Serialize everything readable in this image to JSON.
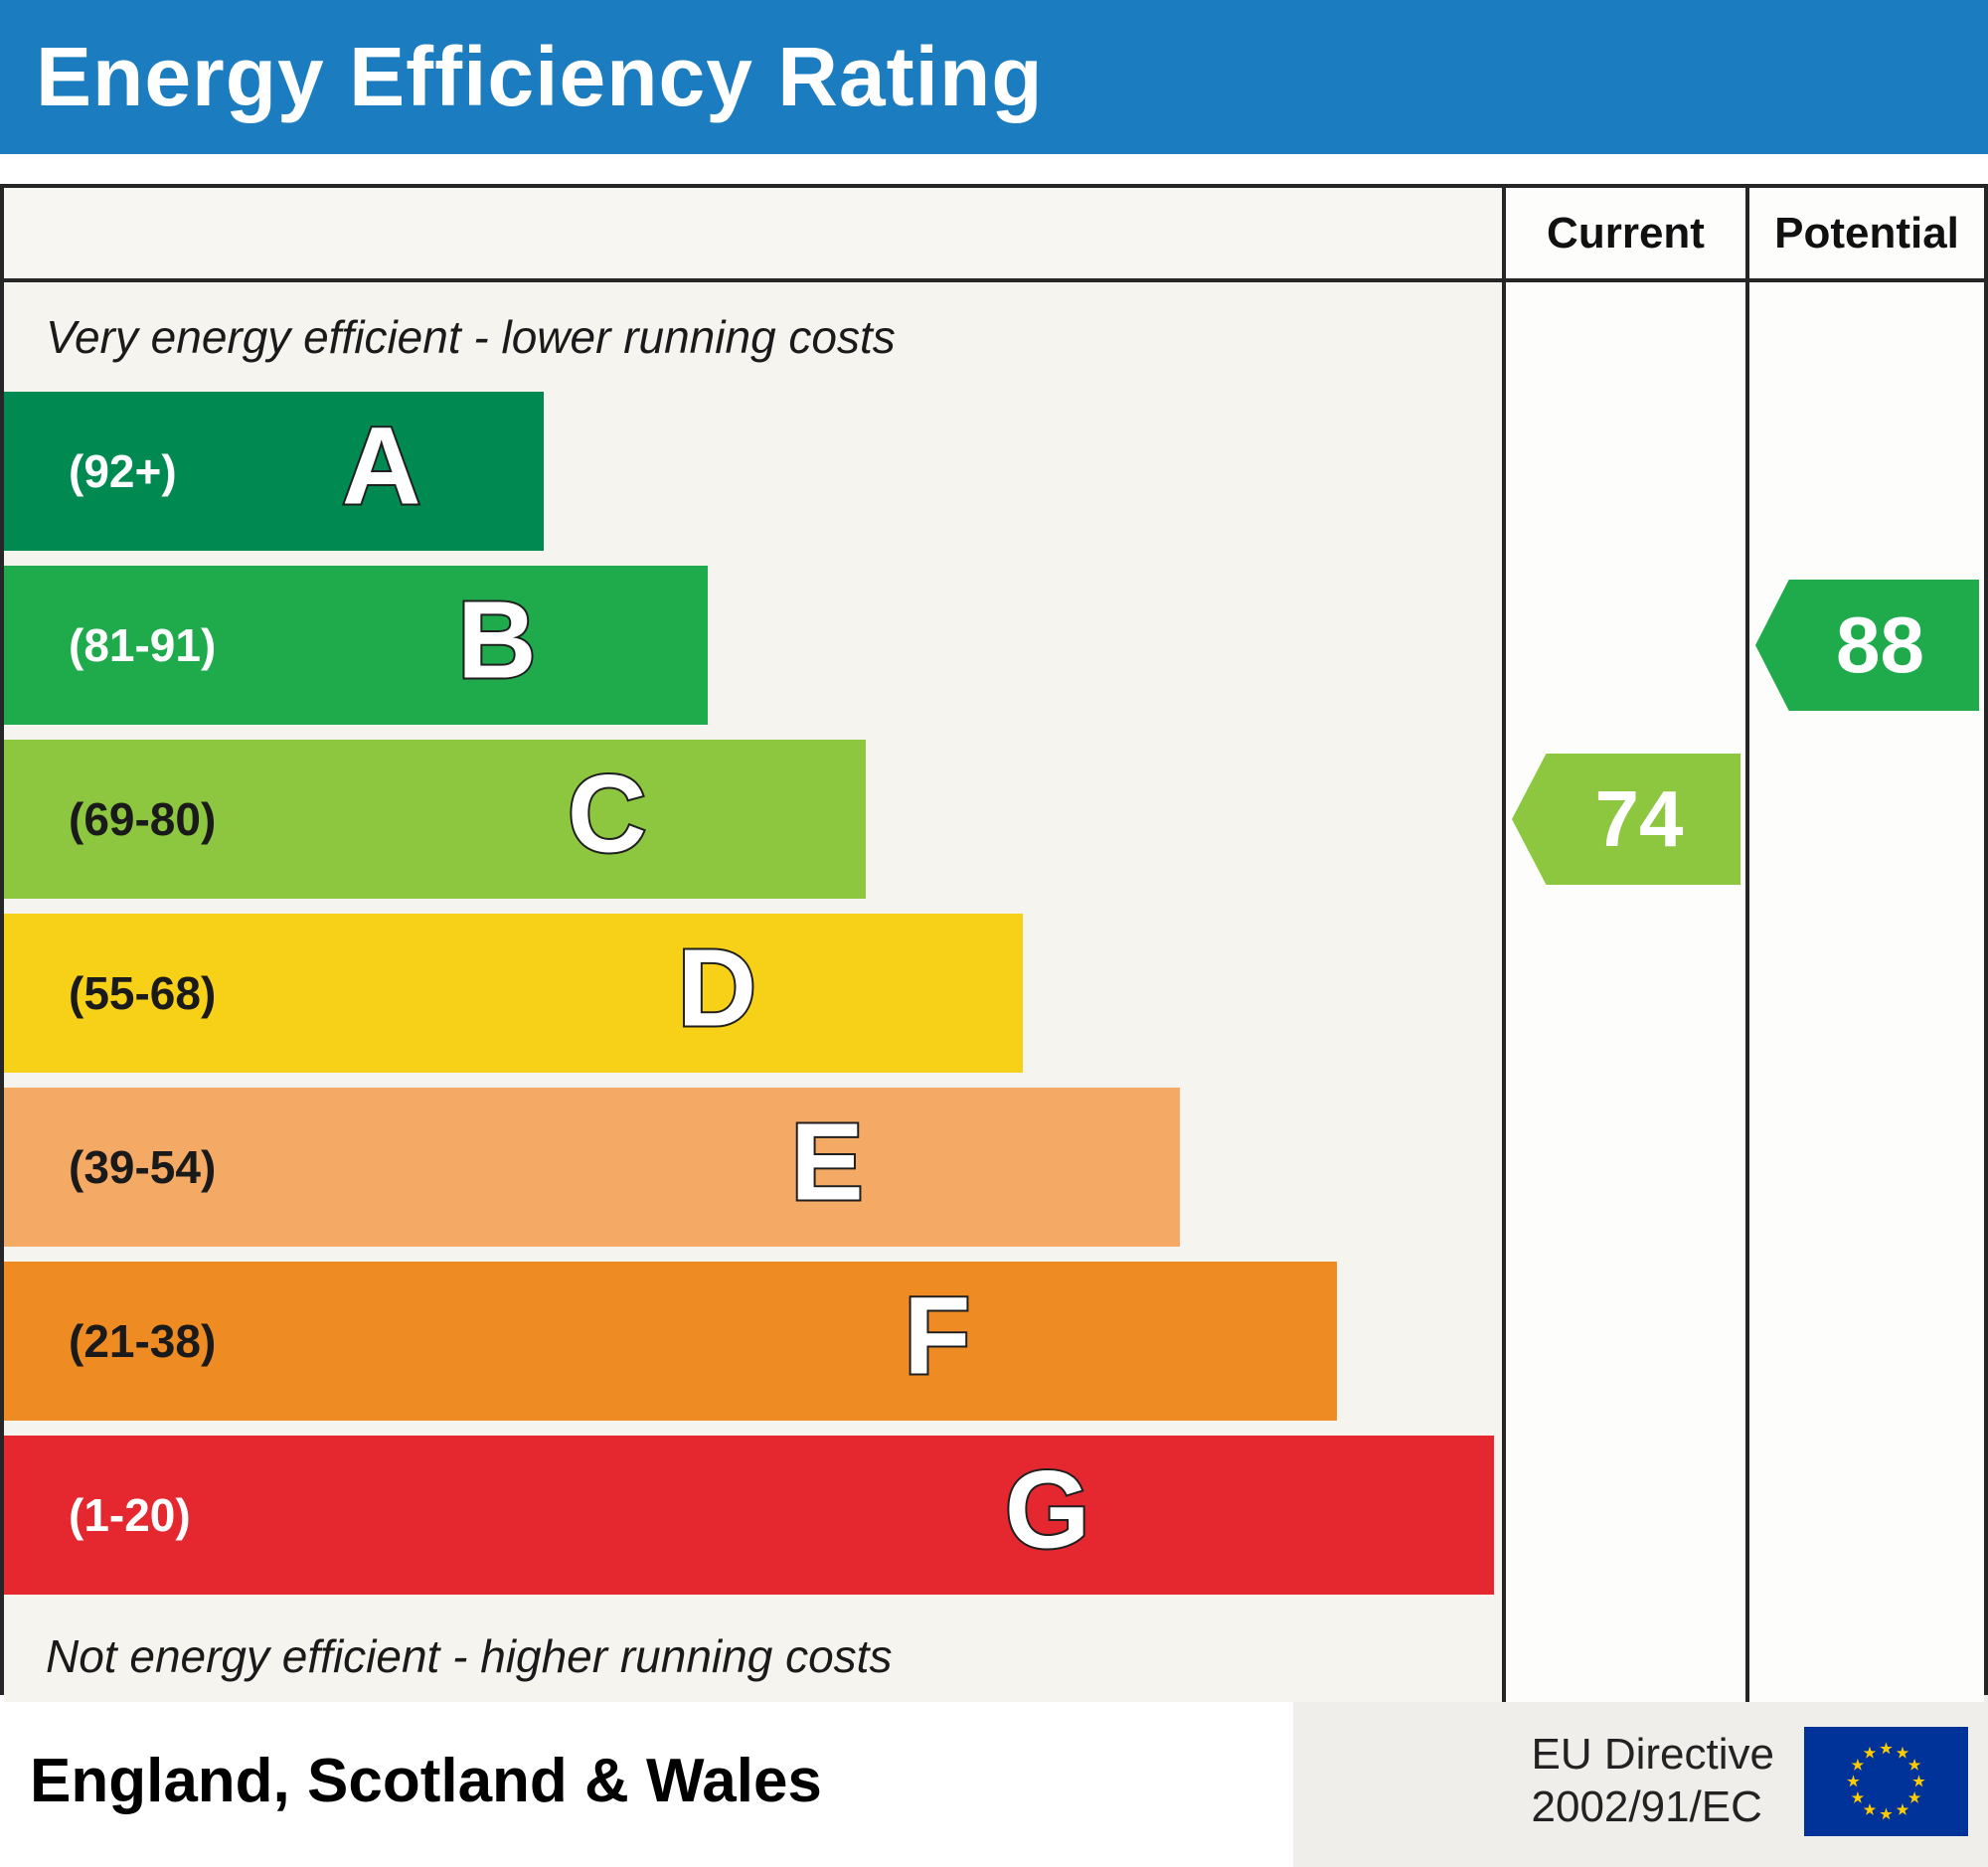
{
  "header": {
    "title": "Energy Efficiency Rating",
    "bg_color": "#1b7cc0"
  },
  "table": {
    "current_label": "Current",
    "potential_label": "Potential",
    "top_note": "Very energy efficient - lower running costs",
    "bottom_note": "Not energy efficient - higher running costs"
  },
  "chart_data": {
    "type": "bar",
    "title": "Energy Efficiency Rating",
    "orientation": "horizontal",
    "bands": [
      {
        "letter": "A",
        "range_label": "(92+)",
        "range": [
          92,
          100
        ],
        "color": "#008a52",
        "text_color": "#ffffff",
        "width_pct": 36
      },
      {
        "letter": "B",
        "range_label": "(81-91)",
        "range": [
          81,
          91
        ],
        "color": "#1fab4c",
        "text_color": "#ffffff",
        "width_pct": 47
      },
      {
        "letter": "C",
        "range_label": "(69-80)",
        "range": [
          69,
          80
        ],
        "color": "#8dc63f",
        "text_color": "#1a1a1a",
        "width_pct": 57.5
      },
      {
        "letter": "D",
        "range_label": "(55-68)",
        "range": [
          55,
          68
        ],
        "color": "#f7d117",
        "text_color": "#1a1a1a",
        "width_pct": 68
      },
      {
        "letter": "E",
        "range_label": "(39-54)",
        "range": [
          39,
          54
        ],
        "color": "#f4aa65",
        "text_color": "#1a1a1a",
        "width_pct": 78.5
      },
      {
        "letter": "F",
        "range_label": "(21-38)",
        "range": [
          21,
          38
        ],
        "color": "#ef8b23",
        "text_color": "#1a1a1a",
        "width_pct": 89
      },
      {
        "letter": "G",
        "range_label": "(1-20)",
        "range": [
          1,
          20
        ],
        "color": "#e52730",
        "text_color": "#ffffff",
        "width_pct": 99.5
      }
    ],
    "current": {
      "value": 74,
      "band": "C",
      "color": "#8dc63f"
    },
    "potential": {
      "value": 88,
      "band": "B",
      "color": "#1fab4c"
    }
  },
  "footer": {
    "region": "England, Scotland & Wales",
    "directive_line1": "EU Directive",
    "directive_line2": "2002/91/EC",
    "eu_flag": {
      "bg": "#003399",
      "star_color": "#ffcc00"
    }
  }
}
